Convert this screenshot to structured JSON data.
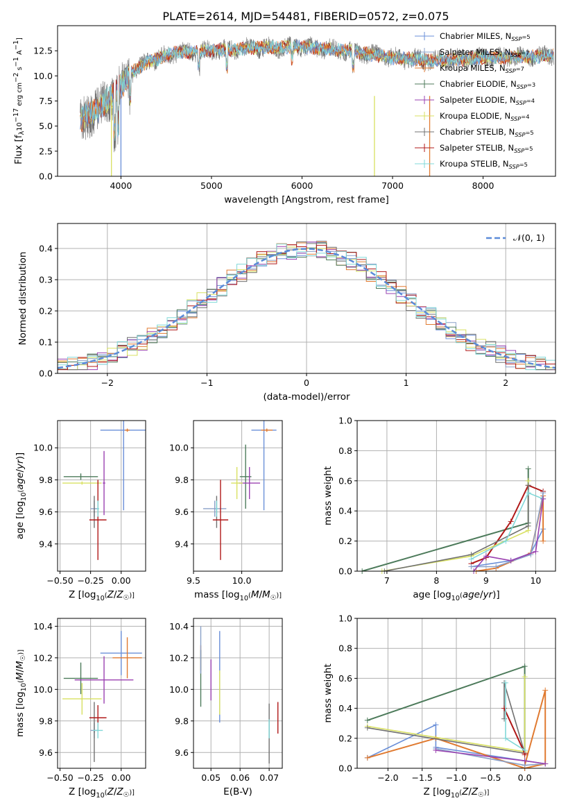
{
  "figure": {
    "title": "PLATE=2614, MJD=54481, FIBERID=0572, z=0.075"
  },
  "colors": {
    "chabrier_miles": "#6a8fd8",
    "salpeter_miles": "#8aa0c8",
    "kroupa_miles": "#e07a30",
    "chabrier_elodie": "#4c7a5a",
    "salpeter_elodie": "#9a40b0",
    "kroupa_elodie": "#d8e060",
    "chabrier_stelib": "#707070",
    "salpeter_stelib": "#b01818",
    "kroupa_stelib": "#80d8d8",
    "gauss": "#5b8bd8",
    "grid": "#b0b0b0"
  },
  "legend1": [
    {
      "key": "chabrier_miles",
      "label": "Chabrier MILES, N",
      "sub": "SSP",
      "tail": "=5"
    },
    {
      "key": "salpeter_miles",
      "label": "Salpeter MILES, N",
      "sub": "SSP",
      "tail": "=7"
    },
    {
      "key": "kroupa_miles",
      "label": "Kroupa MILES, N",
      "sub": "SSP",
      "tail": "=7"
    },
    {
      "key": "chabrier_elodie",
      "label": "Chabrier ELODIE, N",
      "sub": "SSP",
      "tail": "=3"
    },
    {
      "key": "salpeter_elodie",
      "label": "Salpeter ELODIE, N",
      "sub": "SSP",
      "tail": "=4"
    },
    {
      "key": "kroupa_elodie",
      "label": "Kroupa ELODIE, N",
      "sub": "SSP",
      "tail": "=4"
    },
    {
      "key": "chabrier_stelib",
      "label": "Chabrier STELIB, N",
      "sub": "SSP",
      "tail": "=5"
    },
    {
      "key": "salpeter_stelib",
      "label": "Salpeter STELIB, N",
      "sub": "SSP",
      "tail": "=5"
    },
    {
      "key": "kroupa_stelib",
      "label": "Kroupa STELIB, N",
      "sub": "SSP",
      "tail": "=5"
    }
  ],
  "legend2": {
    "label": "𝒩(0, 1)"
  },
  "chart_data": [
    {
      "id": "spectrum",
      "type": "line",
      "xlabel": "wavelength [Angstrom, rest frame]",
      "ylabel": "Flux [f_λ10^-17 erg cm^-2 s^-1 A^-1]",
      "xlim": [
        3300,
        8800
      ],
      "ylim": [
        0,
        15
      ],
      "xticks": [
        4000,
        5000,
        6000,
        7000,
        8000
      ],
      "yticks": [
        0.0,
        2.5,
        5.0,
        7.5,
        10.0,
        12.5
      ],
      "continuum": [
        [
          3550,
          5.5
        ],
        [
          3700,
          6.4
        ],
        [
          3900,
          7.9
        ],
        [
          4100,
          10.2
        ],
        [
          4300,
          11.4
        ],
        [
          4600,
          12.3
        ],
        [
          5000,
          12.5
        ],
        [
          5500,
          12.8
        ],
        [
          6000,
          12.9
        ],
        [
          6500,
          12.5
        ],
        [
          7000,
          11.8
        ],
        [
          7500,
          11.5
        ],
        [
          8000,
          11.8
        ],
        [
          8500,
          11.9
        ],
        [
          8780,
          12.0
        ]
      ]
    },
    {
      "id": "residuals",
      "type": "histogram",
      "xlabel": "(data-model)/error",
      "ylabel": "Normed distribution",
      "xlim": [
        -2.5,
        2.5
      ],
      "ylim": [
        0,
        0.48
      ],
      "xticks": [
        -2,
        -1,
        0,
        1,
        2
      ],
      "yticks": [
        0.0,
        0.1,
        0.2,
        0.3,
        0.4
      ],
      "bin_width": 0.1,
      "gauss": {
        "mu": 0,
        "sigma": 1
      }
    },
    {
      "id": "age_vs_Z",
      "type": "errorbar",
      "xlabel": "Z [log₁₀(Z/Z☉)]",
      "ylabel": "age  [log₁₀(age/yr)]",
      "xlim": [
        -0.52,
        0.2
      ],
      "ylim": [
        9.23,
        10.17
      ],
      "xticks": [
        -0.5,
        -0.25,
        0.0
      ],
      "yticks": [
        9.4,
        9.6,
        9.8,
        10.0
      ],
      "points": [
        {
          "key": "chabrier_miles",
          "x": 0.02,
          "xe": 0.19,
          "y": 10.11,
          "ye": 0.5
        },
        {
          "key": "salpeter_miles",
          "x": -0.22,
          "xe": 0.03,
          "y": 9.62,
          "ye": 0.05
        },
        {
          "key": "kroupa_miles",
          "x": 0.05,
          "xe": 0.02,
          "y": 10.11,
          "ye": 0.01
        },
        {
          "key": "chabrier_elodie",
          "x": -0.33,
          "xe": 0.14,
          "y": 9.82,
          "ye": 0.02
        },
        {
          "key": "salpeter_elodie",
          "x": -0.14,
          "xe": 0.01,
          "y": 9.78,
          "ye": 0.2
        },
        {
          "key": "kroupa_elodie",
          "x": -0.32,
          "xe": 0.16,
          "y": 9.78,
          "ye": 0.01
        },
        {
          "key": "chabrier_stelib",
          "x": -0.22,
          "xe": 0.005,
          "y": 9.6,
          "ye": 0.1
        },
        {
          "key": "salpeter_stelib",
          "x": -0.19,
          "xe": 0.07,
          "y": 9.55,
          "ye": 0.25
        },
        {
          "key": "kroupa_stelib",
          "x": -0.19,
          "xe": 0.01,
          "y": 9.62,
          "ye": 0.05
        }
      ]
    },
    {
      "id": "age_vs_mass",
      "type": "errorbar",
      "xlabel": "mass [log₁₀(M/M☉)]",
      "ylabel": "",
      "xlim": [
        9.5,
        10.42
      ],
      "ylim": [
        9.23,
        10.17
      ],
      "xticks": [
        9.5,
        10.0
      ],
      "yticks": [
        9.4,
        9.6,
        9.8,
        10.0
      ],
      "points": [
        {
          "key": "chabrier_miles",
          "x": 10.23,
          "xe": 0.13,
          "y": 10.11,
          "ye": 0.5
        },
        {
          "key": "salpeter_miles",
          "x": 9.72,
          "xe": 0.12,
          "y": 9.62,
          "ye": 0.05
        },
        {
          "key": "kroupa_miles",
          "x": 10.26,
          "xe": 0.06,
          "y": 10.11,
          "ye": 0.01
        },
        {
          "key": "chabrier_elodie",
          "x": 10.04,
          "xe": 0.06,
          "y": 9.82,
          "ye": 0.2
        },
        {
          "key": "salpeter_elodie",
          "x": 10.08,
          "xe": 0.11,
          "y": 9.78,
          "ye": 0.1
        },
        {
          "key": "kroupa_elodie",
          "x": 9.95,
          "xe": 0.06,
          "y": 9.78,
          "ye": 0.1
        },
        {
          "key": "chabrier_stelib",
          "x": 9.74,
          "xe": 0.005,
          "y": 9.6,
          "ye": 0.1
        },
        {
          "key": "salpeter_stelib",
          "x": 9.78,
          "xe": 0.08,
          "y": 9.55,
          "ye": 0.25
        },
        {
          "key": "kroupa_stelib",
          "x": 9.74,
          "xe": 0.01,
          "y": 9.62,
          "ye": 0.05
        }
      ]
    },
    {
      "id": "weight_vs_age",
      "type": "line",
      "xlabel": "age  [log₁₀(age/yr)]",
      "ylabel": "mass weight",
      "xlim": [
        6.4,
        10.4
      ],
      "ylim": [
        0,
        1
      ],
      "xticks": [
        7,
        8,
        9,
        10
      ],
      "yticks": [
        0.0,
        0.2,
        0.4,
        0.6,
        0.8,
        1.0
      ],
      "series": [
        {
          "key": "chabrier_elodie",
          "x": [
            6.5,
            9.85,
            9.85
          ],
          "y": [
            0.0,
            0.32,
            0.68
          ]
        },
        {
          "key": "chabrier_miles",
          "x": [
            8.7,
            9.5,
            9.9,
            10.15
          ],
          "y": [
            0.03,
            0.07,
            0.12,
            0.28
          ]
        },
        {
          "key": "salpeter_stelib",
          "x": [
            8.7,
            9.0,
            9.5,
            9.85,
            10.15
          ],
          "y": [
            0.05,
            0.09,
            0.33,
            0.57,
            0.53
          ]
        },
        {
          "key": "kroupa_miles",
          "x": [
            8.8,
            9.2,
            9.9,
            10.15,
            10.15
          ],
          "y": [
            0.0,
            0.02,
            0.12,
            0.5,
            0.2
          ]
        },
        {
          "key": "salpeter_miles",
          "x": [
            8.7,
            9.2,
            9.9,
            10.15
          ],
          "y": [
            0.03,
            0.03,
            0.11,
            0.52
          ]
        },
        {
          "key": "kroupa_elodie",
          "x": [
            6.9,
            8.7,
            9.85,
            9.85
          ],
          "y": [
            0.0,
            0.1,
            0.27,
            0.6
          ]
        },
        {
          "key": "chabrier_stelib",
          "x": [
            6.95,
            8.7,
            9.85,
            9.85
          ],
          "y": [
            0.0,
            0.11,
            0.3,
            0.57
          ]
        },
        {
          "key": "kroupa_stelib",
          "x": [
            8.7,
            9.4,
            9.85,
            10.15
          ],
          "y": [
            0.08,
            0.2,
            0.52,
            0.48
          ]
        },
        {
          "key": "salpeter_elodie",
          "x": [
            8.75,
            9.0,
            9.5,
            10.0,
            10.15
          ],
          "y": [
            0.0,
            0.1,
            0.07,
            0.13,
            0.48
          ]
        }
      ]
    },
    {
      "id": "mass_vs_Z",
      "type": "errorbar",
      "xlabel": "Z [log₁₀(Z/Z☉)]",
      "ylabel": "mass [log₁₀(M/M☉)]",
      "xlim": [
        -0.52,
        0.2
      ],
      "ylim": [
        9.5,
        10.45
      ],
      "xticks": [
        -0.5,
        -0.25,
        0.0
      ],
      "yticks": [
        9.6,
        9.8,
        10.0,
        10.2,
        10.4
      ],
      "points": [
        {
          "key": "chabrier_miles",
          "x": 0.0,
          "xe": 0.17,
          "y": 10.23,
          "ye": 0.14
        },
        {
          "key": "salpeter_miles",
          "x": -0.22,
          "xe": 0.03,
          "y": 9.74,
          "ye": 0.05
        },
        {
          "key": "kroupa_miles",
          "x": 0.05,
          "xe": 0.12,
          "y": 10.2,
          "ye": 0.13
        },
        {
          "key": "chabrier_elodie",
          "x": -0.33,
          "xe": 0.14,
          "y": 10.07,
          "ye": 0.1
        },
        {
          "key": "salpeter_elodie",
          "x": -0.14,
          "xe": 0.24,
          "y": 10.06,
          "ye": 0.15
        },
        {
          "key": "kroupa_elodie",
          "x": -0.32,
          "xe": 0.16,
          "y": 9.94,
          "ye": 0.1
        },
        {
          "key": "chabrier_stelib",
          "x": -0.22,
          "xe": 0.005,
          "y": 9.73,
          "ye": 0.19
        },
        {
          "key": "salpeter_stelib",
          "x": -0.19,
          "xe": 0.07,
          "y": 9.82,
          "ye": 0.08
        },
        {
          "key": "kroupa_stelib",
          "x": -0.19,
          "xe": 0.04,
          "y": 9.74,
          "ye": 0.05
        }
      ]
    },
    {
      "id": "mass_vs_ebv",
      "type": "errorbar",
      "xlabel": "E(B-V)",
      "ylabel": "",
      "xlim": [
        0.044,
        0.0745
      ],
      "ylim": [
        9.5,
        10.45
      ],
      "xticks": [
        0.05,
        0.06,
        0.07
      ],
      "yticks": [
        9.6,
        9.8,
        10.0,
        10.2,
        10.4
      ],
      "points": [
        {
          "key": "chabrier_miles",
          "x": 0.053,
          "xe": 0,
          "y": 10.08,
          "ye": 0.29
        },
        {
          "key": "kroupa_miles",
          "x": 0.0465,
          "xe": 0,
          "y": 10.2,
          "ye": 0.08
        },
        {
          "key": "chabrier_elodie",
          "x": 0.0465,
          "xe": 0,
          "y": 10.07,
          "ye": 0.18
        },
        {
          "key": "salpeter_elodie",
          "x": 0.05,
          "xe": 0,
          "y": 10.06,
          "ye": 0.13
        },
        {
          "key": "kroupa_elodie",
          "x": 0.053,
          "xe": 0,
          "y": 9.98,
          "ye": 0.14
        },
        {
          "key": "salpeter_miles",
          "x": 0.0465,
          "xe": 0,
          "y": 10.25,
          "ye": 0.15
        },
        {
          "key": "chabrier_stelib",
          "x": 0.07,
          "xe": 0,
          "y": 9.72,
          "ye": 0.19
        },
        {
          "key": "salpeter_stelib",
          "x": 0.073,
          "xe": 0,
          "y": 9.82,
          "ye": 0.1
        },
        {
          "key": "kroupa_stelib",
          "x": 0.07,
          "xe": 0,
          "y": 9.75,
          "ye": 0.06
        }
      ]
    },
    {
      "id": "weight_vs_Z",
      "type": "line",
      "xlabel": "Z [log₁₀(Z/Z☉)]",
      "ylabel": "mass weight",
      "xlim": [
        -2.45,
        0.45
      ],
      "ylim": [
        0,
        1
      ],
      "xticks": [
        -2.0,
        -1.5,
        -1.0,
        -0.5,
        0.0
      ],
      "yticks": [
        0.0,
        0.2,
        0.4,
        0.6,
        0.8,
        1.0
      ],
      "series": [
        {
          "key": "chabrier_elodie",
          "x": [
            -2.3,
            0.0,
            0.0
          ],
          "y": [
            0.32,
            0.68,
            0.1
          ]
        },
        {
          "key": "chabrier_miles",
          "x": [
            -2.3,
            -1.3,
            -1.3,
            0.0,
            0.3
          ],
          "y": [
            0.07,
            0.29,
            0.14,
            0.05,
            0.03
          ]
        },
        {
          "key": "kroupa_miles",
          "x": [
            -2.3,
            -1.3,
            0.0,
            0.3,
            0.3,
            0.0
          ],
          "y": [
            0.07,
            0.2,
            0.0,
            0.03,
            0.52,
            0.02
          ]
        },
        {
          "key": "salpeter_miles",
          "x": [
            -1.3,
            0.0,
            0.3
          ],
          "y": [
            0.13,
            0.02,
            0.03
          ]
        },
        {
          "key": "kroupa_elodie",
          "x": [
            -2.3,
            0.0,
            0.0
          ],
          "y": [
            0.28,
            0.11,
            0.61
          ]
        },
        {
          "key": "chabrier_stelib",
          "x": [
            -2.3,
            0.0,
            -0.3,
            -0.3
          ],
          "y": [
            0.27,
            0.1,
            0.57,
            0.33
          ]
        },
        {
          "key": "salpeter_stelib",
          "x": [
            -0.3,
            0.0,
            0.0
          ],
          "y": [
            0.4,
            0.1,
            0.09
          ]
        },
        {
          "key": "kroupa_stelib",
          "x": [
            -0.28,
            -0.28,
            0.0
          ],
          "y": [
            0.57,
            0.2,
            0.12
          ]
        },
        {
          "key": "salpeter_elodie",
          "x": [
            -1.3,
            0.0,
            0.3
          ],
          "y": [
            0.12,
            0.05,
            0.03
          ]
        }
      ]
    }
  ]
}
